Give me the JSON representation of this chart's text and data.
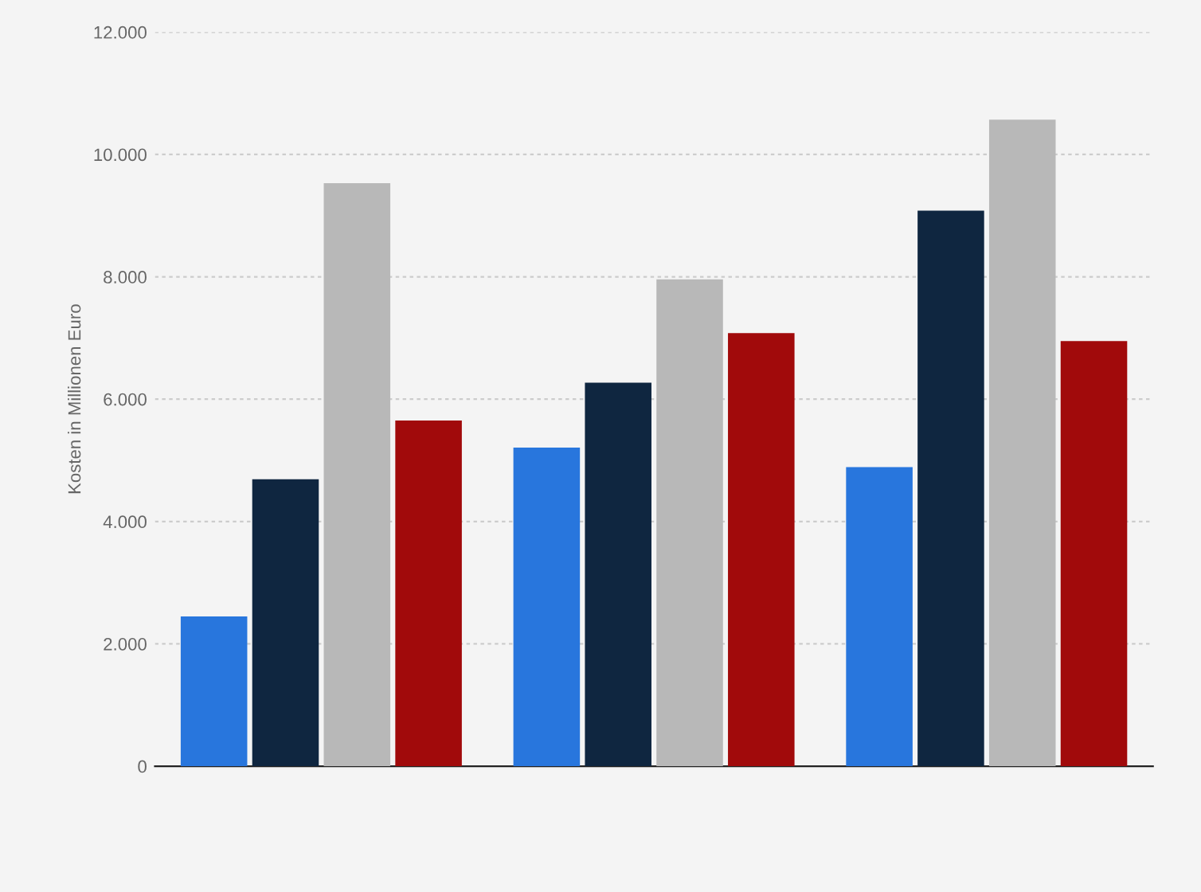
{
  "chart_data": {
    "type": "bar",
    "ylabel": "Kosten in Millionen Euro",
    "categories": [
      null,
      null,
      null
    ],
    "series": [
      {
        "color": "#2876dd",
        "values": [
          2450,
          5210,
          4890
        ]
      },
      {
        "color": "#0f2640",
        "values": [
          4690,
          6270,
          9080
        ]
      },
      {
        "color": "#b8b8b8",
        "values": [
          9530,
          7960,
          10570
        ]
      },
      {
        "color": "#a10a0b",
        "values": [
          5650,
          7080,
          6950
        ]
      }
    ],
    "ylim": [
      0,
      12000
    ],
    "yticks": [
      {
        "value": 0,
        "label": "0"
      },
      {
        "value": 2000,
        "label": "2.000"
      },
      {
        "value": 4000,
        "label": "4.000"
      },
      {
        "value": 6000,
        "label": "6.000"
      },
      {
        "value": 8000,
        "label": "8.000"
      },
      {
        "value": 10000,
        "label": "10.000"
      },
      {
        "value": 12000,
        "label": "12.000"
      }
    ],
    "grid": "y",
    "tick_labels": "y",
    "legend": false
  }
}
